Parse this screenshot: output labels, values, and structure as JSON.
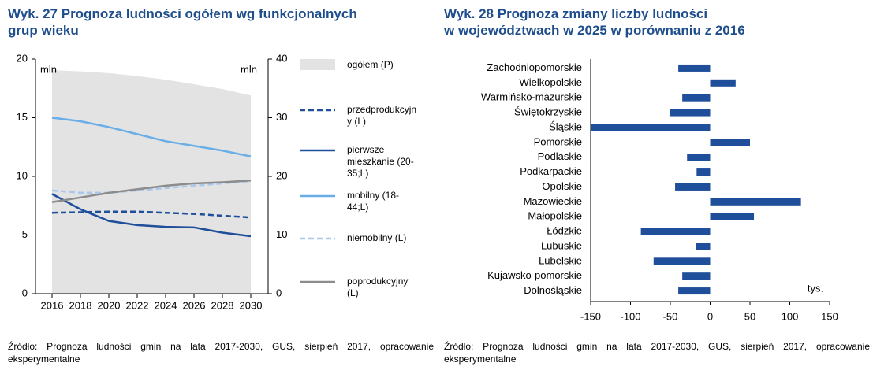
{
  "chart_data": [
    {
      "type": "line",
      "title": [
        "Wyk. 27 Prognoza ludności ogółem wg funkcjonalnych",
        "grup wieku"
      ],
      "y_label": "mln",
      "y2_label": "mln",
      "x": [
        2016,
        2018,
        2020,
        2022,
        2024,
        2026,
        2028,
        2030
      ],
      "xlim": [
        2015,
        2031
      ],
      "xticks": [
        2016,
        2018,
        2020,
        2022,
        2024,
        2026,
        2028,
        2030
      ],
      "ylim": [
        0,
        20
      ],
      "yticks": [
        0,
        5,
        10,
        15,
        20
      ],
      "y2lim": [
        0,
        40
      ],
      "y2ticks": [
        0,
        10,
        20,
        30,
        40
      ],
      "series": [
        {
          "name": "ogółem (P)",
          "color": "#e3e3e3",
          "style": "area",
          "axis": "y2",
          "values": [
            38.1,
            37.9,
            37.6,
            37.1,
            36.5,
            35.7,
            34.9,
            33.8
          ]
        },
        {
          "name": "przedprodukcyjny (L)",
          "color": "#1f4e9a",
          "style": "dashed",
          "values": [
            6.9,
            6.95,
            7.0,
            7.0,
            6.9,
            6.8,
            6.65,
            6.5
          ]
        },
        {
          "name": "pierwsze mieszkanie (20-35;L)",
          "color": "#1f4e9a",
          "style": "solid",
          "values": [
            8.5,
            7.2,
            6.2,
            5.85,
            5.7,
            5.65,
            5.2,
            4.9
          ]
        },
        {
          "name": "mobilny (18-44;L)",
          "color": "#6aaee8",
          "style": "solid",
          "values": [
            15.0,
            14.7,
            14.2,
            13.6,
            13.0,
            12.6,
            12.2,
            11.7
          ]
        },
        {
          "name": "niemobilny (L)",
          "color": "#a9c8ec",
          "style": "dashed",
          "values": [
            8.8,
            8.6,
            8.6,
            8.8,
            9.0,
            9.2,
            9.4,
            9.6
          ]
        },
        {
          "name": "poprodukcyjny (L)",
          "color": "#8c8c8c",
          "style": "solid",
          "values": [
            7.8,
            8.2,
            8.6,
            8.9,
            9.2,
            9.4,
            9.5,
            9.65
          ]
        }
      ],
      "source": "Źródło: Prognoza ludności gmin na lata 2017-2030, GUS, sierpień 2017, opracowanie eksperymentalne"
    },
    {
      "type": "hbar",
      "title": [
        "Wyk. 28 Prognoza zmiany liczby ludności",
        "w województwach w 2025 w porównaniu z 2016"
      ],
      "categories": [
        "Zachodniopomorskie",
        "Wielkopolskie",
        "Warmińsko-mazurskie",
        "Świętokrzyskie",
        "Śląskie",
        "Pomorskie",
        "Podlaskie",
        "Podkarpackie",
        "Opolskie",
        "Mazowieckie",
        "Małopolskie",
        "Łódzkie",
        "Lubuskie",
        "Lubelskie",
        "Kujawsko-pomorskie",
        "Dolnośląskie"
      ],
      "values": [
        -40,
        32,
        -35,
        -50,
        -150,
        50,
        -29,
        -17,
        -44,
        114,
        55,
        -87,
        -18,
        -71,
        -35,
        -40
      ],
      "color": "#1f4e9a",
      "xlim": [
        -150,
        150
      ],
      "xticks": [
        -150,
        -100,
        -50,
        0,
        50,
        100,
        150
      ],
      "unit_label": "tys.",
      "source": "Źródło: Prognoza ludności gmin na lata 2017-2030, GUS, sierpień 2017, opracowanie eksperymentalne"
    }
  ]
}
